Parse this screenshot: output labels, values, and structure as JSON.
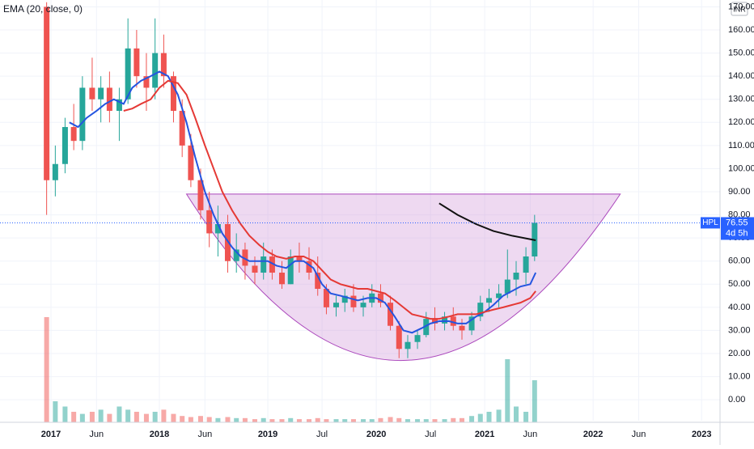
{
  "chart_data": {
    "type": "candlestick",
    "legend_text": "EMA (20, close, 0)",
    "currency": "INR",
    "xlim": [
      2016.53,
      2023.17
    ],
    "ylim": [
      -9.05,
      172.96
    ],
    "xticks": [
      2017,
      {
        "value": 2017.42,
        "label": "Jun"
      },
      2018,
      {
        "value": 2018.42,
        "label": "Jun"
      },
      2019,
      {
        "value": 2019.5,
        "label": "Jul"
      },
      2020,
      {
        "value": 2020.5,
        "label": "Jul"
      },
      2021,
      {
        "value": 2021.42,
        "label": "Jun"
      },
      2022,
      {
        "value": 2022.42,
        "label": "Jun"
      },
      2023
    ],
    "yticks": [
      {
        "value": 0,
        "label": "0.00"
      },
      {
        "value": 10,
        "label": "10.00"
      },
      {
        "value": 20,
        "label": "20.00"
      },
      {
        "value": 30,
        "label": "30.00"
      },
      {
        "value": 40,
        "label": "40.00"
      },
      {
        "value": 50,
        "label": "50.00"
      },
      {
        "value": 60,
        "label": "60.00"
      },
      {
        "value": 70,
        "label": "70.00"
      },
      {
        "value": 80,
        "label": "80.00"
      },
      {
        "value": 90,
        "label": "90.00"
      },
      {
        "value": 100,
        "label": "100.00"
      },
      {
        "value": 110,
        "label": "110.00"
      },
      {
        "value": 120,
        "label": "120.00"
      },
      {
        "value": 130,
        "label": "130.00"
      },
      {
        "value": 140,
        "label": "140.00"
      },
      {
        "value": 150,
        "label": "150.00"
      },
      {
        "value": 160,
        "label": "160.00"
      },
      {
        "value": 170,
        "label": "170.00"
      }
    ],
    "up_color": "#26a69a",
    "down_color": "#ef5350",
    "x": [
      2016.96,
      2017.04,
      2017.13,
      2017.21,
      2017.29,
      2017.38,
      2017.46,
      2017.54,
      2017.63,
      2017.71,
      2017.79,
      2017.88,
      2017.96,
      2018.04,
      2018.13,
      2018.21,
      2018.29,
      2018.38,
      2018.46,
      2018.54,
      2018.63,
      2018.71,
      2018.79,
      2018.88,
      2018.96,
      2019.04,
      2019.13,
      2019.21,
      2019.29,
      2019.38,
      2019.46,
      2019.54,
      2019.63,
      2019.71,
      2019.79,
      2019.88,
      2019.96,
      2020.04,
      2020.13,
      2020.21,
      2020.29,
      2020.38,
      2020.46,
      2020.54,
      2020.63,
      2020.71,
      2020.79,
      2020.88,
      2020.96,
      2021.04,
      2021.13,
      2021.21,
      2021.29,
      2021.38,
      2021.46
    ],
    "open": [
      170,
      95,
      102,
      118,
      112,
      135,
      130,
      135,
      125,
      130,
      152,
      140,
      135,
      150,
      140,
      125,
      110,
      95,
      82,
      72,
      76,
      60,
      65,
      58,
      55,
      62,
      55,
      50,
      62,
      60,
      55,
      48,
      40,
      42,
      45,
      40,
      42,
      46,
      42,
      32,
      22,
      25,
      28,
      35,
      33,
      36,
      32,
      30,
      36,
      42,
      44,
      46,
      52,
      55,
      62
    ],
    "high": [
      172,
      110,
      122,
      128,
      140,
      148,
      140,
      142,
      135,
      165,
      160,
      150,
      165,
      158,
      142,
      130,
      115,
      100,
      90,
      84,
      80,
      72,
      68,
      62,
      68,
      65,
      60,
      65,
      68,
      66,
      62,
      50,
      45,
      48,
      50,
      45,
      50,
      50,
      45,
      34,
      28,
      30,
      38,
      40,
      38,
      40,
      35,
      38,
      45,
      48,
      50,
      65,
      60,
      66,
      80
    ],
    "low": [
      80,
      88,
      98,
      108,
      108,
      125,
      120,
      120,
      112,
      128,
      135,
      125,
      130,
      135,
      120,
      105,
      92,
      78,
      66,
      62,
      55,
      55,
      52,
      50,
      52,
      52,
      48,
      50,
      55,
      52,
      45,
      37,
      36,
      38,
      38,
      36,
      40,
      40,
      30,
      18,
      18,
      22,
      27,
      30,
      30,
      30,
      26,
      28,
      34,
      38,
      40,
      44,
      45,
      50,
      60
    ],
    "close": [
      95,
      102,
      118,
      112,
      135,
      130,
      135,
      125,
      130,
      152,
      140,
      135,
      150,
      140,
      125,
      110,
      95,
      82,
      72,
      76,
      60,
      65,
      58,
      55,
      62,
      55,
      50,
      62,
      60,
      55,
      48,
      40,
      42,
      45,
      40,
      42,
      46,
      42,
      32,
      22,
      25,
      28,
      35,
      33,
      36,
      32,
      30,
      36,
      42,
      44,
      46,
      52,
      55,
      62,
      76.55
    ],
    "volume": [
      100,
      20,
      15,
      10,
      8,
      10,
      12,
      8,
      15,
      12,
      10,
      8,
      10,
      12,
      8,
      6,
      5,
      6,
      5,
      4,
      5,
      4,
      4,
      3,
      4,
      3,
      3,
      4,
      3,
      3,
      4,
      3,
      3,
      3,
      3,
      3,
      3,
      4,
      5,
      4,
      3,
      3,
      3,
      3,
      3,
      4,
      4,
      6,
      8,
      10,
      12,
      60,
      15,
      10,
      40
    ],
    "series": [
      {
        "color": "#2455e0",
        "x": [
          2017.17,
          2017.25,
          2017.33,
          2017.42,
          2017.5,
          2017.58,
          2017.67,
          2017.75,
          2017.83,
          2017.92,
          2018.0,
          2018.08,
          2018.17,
          2018.25,
          2018.33,
          2018.42,
          2018.5,
          2018.58,
          2018.67,
          2018.75,
          2018.83,
          2018.92,
          2019.0,
          2019.08,
          2019.17,
          2019.25,
          2019.33,
          2019.42,
          2019.5,
          2019.58,
          2019.67,
          2019.75,
          2019.83,
          2019.92,
          2020.0,
          2020.08,
          2020.17,
          2020.25,
          2020.33,
          2020.42,
          2020.5,
          2020.58,
          2020.67,
          2020.75,
          2020.83,
          2020.92,
          2021.0,
          2021.08,
          2021.17,
          2021.25,
          2021.33,
          2021.42,
          2021.47
        ],
        "values": [
          120,
          118,
          122,
          125,
          128,
          130,
          128,
          135,
          138,
          140,
          142,
          140,
          132,
          120,
          105,
          90,
          80,
          72,
          66,
          62,
          60,
          60,
          60,
          58,
          57,
          60,
          60,
          57,
          50,
          46,
          45,
          44,
          43,
          44,
          44,
          42,
          36,
          30,
          29,
          31,
          33,
          34,
          34,
          33,
          33,
          36,
          38,
          41,
          45,
          47,
          49,
          50,
          55
        ]
      },
      {
        "color": "#e53935",
        "x": [
          2017.67,
          2017.75,
          2017.83,
          2017.92,
          2018.0,
          2018.08,
          2018.17,
          2018.25,
          2018.33,
          2018.42,
          2018.5,
          2018.58,
          2018.67,
          2018.75,
          2018.83,
          2018.92,
          2019.0,
          2019.08,
          2019.17,
          2019.25,
          2019.33,
          2019.42,
          2019.5,
          2019.58,
          2019.67,
          2019.75,
          2019.83,
          2019.92,
          2020.0,
          2020.08,
          2020.17,
          2020.25,
          2020.33,
          2020.42,
          2020.5,
          2020.58,
          2020.67,
          2020.75,
          2020.83,
          2020.92,
          2021.0,
          2021.08,
          2021.17,
          2021.25,
          2021.33,
          2021.42,
          2021.47
        ],
        "values": [
          125,
          126,
          128,
          130,
          135,
          138,
          137,
          132,
          122,
          110,
          100,
          90,
          82,
          76,
          71,
          67,
          64,
          62,
          61,
          62,
          62,
          60,
          56,
          52,
          50,
          49,
          48,
          48,
          47,
          46,
          43,
          40,
          37,
          36,
          35,
          35,
          36,
          37,
          37,
          37,
          38,
          39,
          40,
          41,
          42,
          44,
          47
        ]
      },
      {
        "color": "#111111",
        "x": [
          2020.58,
          2020.75,
          2020.92,
          2021.08,
          2021.25,
          2021.47
        ],
        "values": [
          85,
          80,
          76,
          73,
          71,
          69
        ]
      }
    ],
    "cup": {
      "x": [
        2018.25,
        2020.2,
        2022.25
      ],
      "values": [
        89,
        17,
        89
      ]
    },
    "last_price": {
      "symbol": "HPL",
      "value": 76.55,
      "countdown": "4d 5h"
    }
  }
}
